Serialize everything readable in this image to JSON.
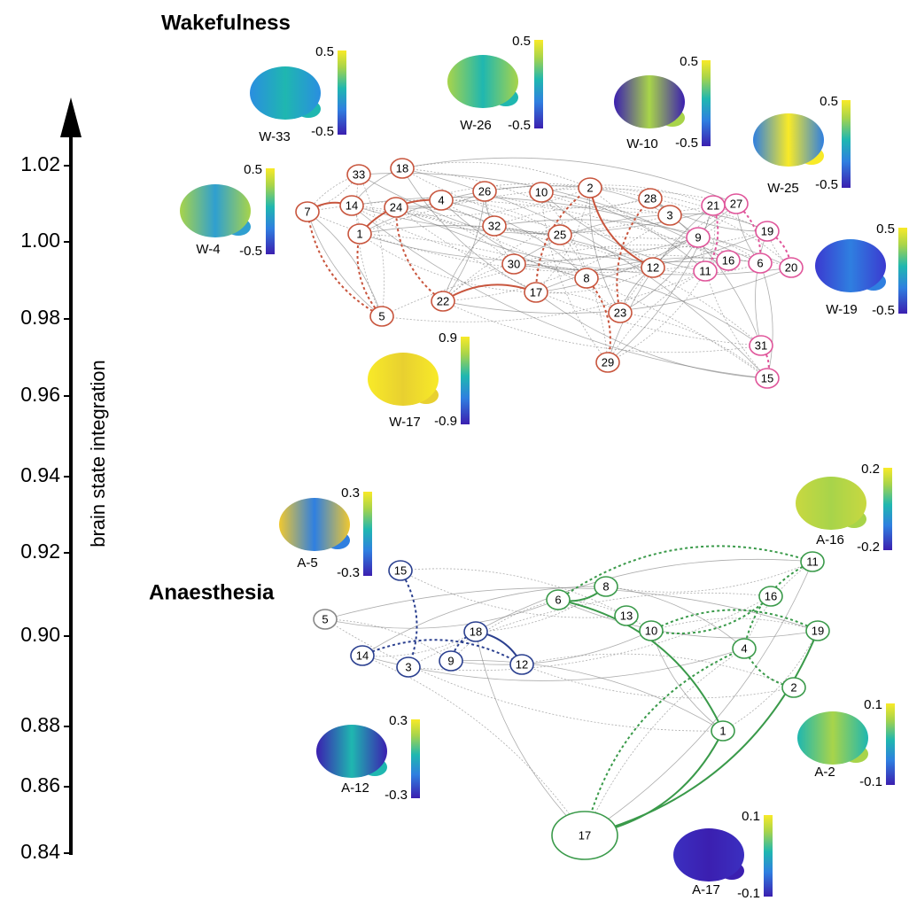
{
  "axis": {
    "label": "brain state integration",
    "ticks": [
      "1.02",
      "1.00",
      "0.98",
      "0.96",
      "0.94",
      "0.92",
      "0.90",
      "0.88",
      "0.86",
      "0.84"
    ]
  },
  "wakefulness": {
    "title": "Wakefulness",
    "nodes": [
      "33",
      "18",
      "26",
      "10",
      "2",
      "28",
      "4",
      "14",
      "24",
      "7",
      "1",
      "3",
      "21",
      "27",
      "32",
      "25",
      "9",
      "19",
      "16",
      "6",
      "20",
      "11",
      "12",
      "30",
      "8",
      "17",
      "22",
      "5",
      "23",
      "31",
      "29",
      "15"
    ],
    "brains": [
      {
        "label": "W-33",
        "max": "0.5",
        "min": "-0.5"
      },
      {
        "label": "W-26",
        "max": "0.5",
        "min": "-0.5"
      },
      {
        "label": "W-10",
        "max": "0.5",
        "min": "-0.5"
      },
      {
        "label": "W-25",
        "max": "0.5",
        "min": "-0.5"
      },
      {
        "label": "W-4",
        "max": "0.5",
        "min": "-0.5"
      },
      {
        "label": "W-19",
        "max": "0.5",
        "min": "-0.5"
      },
      {
        "label": "W-17",
        "max": "0.9",
        "min": "-0.9"
      }
    ]
  },
  "anaesthesia": {
    "title": "Anaesthesia",
    "nodes": [
      "15",
      "5",
      "14",
      "3",
      "9",
      "18",
      "12",
      "6",
      "8",
      "13",
      "10",
      "11",
      "16",
      "19",
      "4",
      "2",
      "1",
      "17"
    ],
    "brains": [
      {
        "label": "A-5",
        "max": "0.3",
        "min": "-0.3"
      },
      {
        "label": "A-16",
        "max": "0.2",
        "min": "-0.2"
      },
      {
        "label": "A-12",
        "max": "0.3",
        "min": "-0.3"
      },
      {
        "label": "A-2",
        "max": "0.1",
        "min": "-0.1"
      },
      {
        "label": "A-17",
        "max": "0.1",
        "min": "-0.1"
      }
    ]
  }
}
